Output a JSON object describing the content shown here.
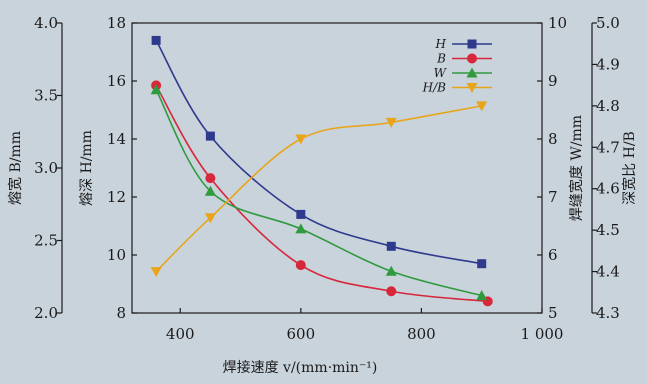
{
  "chart_data": {
    "type": "line",
    "xlabel": "焊接速度 v/(mm·min⁻¹)",
    "x_ticks": [
      400,
      600,
      800,
      1000
    ],
    "x_tick_labels": [
      "400",
      "600",
      "800",
      "1 000"
    ],
    "xlim": [
      320,
      1000
    ],
    "grid": false,
    "legend_position": "top-right",
    "axes": [
      {
        "id": "B",
        "label": "熔宽 B/mm",
        "side": "left-outer",
        "range": [
          2.0,
          4.0
        ],
        "ticks": [
          "2.0",
          "2.5",
          "3.0",
          "3.5",
          "4.0"
        ]
      },
      {
        "id": "H",
        "label": "熔深 H/mm",
        "side": "left-inner",
        "range": [
          8,
          18
        ],
        "ticks": [
          "8",
          "10",
          "12",
          "14",
          "16",
          "18"
        ]
      },
      {
        "id": "W",
        "label": "焊缝宽度 W/mm",
        "side": "right-inner",
        "range": [
          5,
          10
        ],
        "ticks": [
          "5",
          "6",
          "7",
          "8",
          "9",
          "10"
        ]
      },
      {
        "id": "H/B",
        "label": "深宽比 H/B",
        "side": "right-outer",
        "range": [
          4.3,
          5.0
        ],
        "ticks": [
          "4.3",
          "4.4",
          "4.5",
          "4.6",
          "4.7",
          "4.8",
          "4.9",
          "5.0"
        ]
      }
    ],
    "series": [
      {
        "name": "H",
        "axis": "H",
        "color": "#2e3a8c",
        "marker": "square",
        "x": [
          360,
          450,
          600,
          750,
          900
        ],
        "y": [
          17.4,
          14.1,
          11.4,
          10.3,
          9.7
        ]
      },
      {
        "name": "B",
        "axis": "B",
        "color": "#d8263a",
        "marker": "circle",
        "x": [
          360,
          450,
          600,
          750,
          910
        ],
        "y": [
          3.57,
          2.93,
          2.33,
          2.15,
          2.08
        ]
      },
      {
        "name": "W",
        "axis": "W",
        "color": "#2f9a3e",
        "marker": "triangle-up",
        "x": [
          360,
          450,
          600,
          750,
          900
        ],
        "y": [
          8.85,
          7.1,
          6.45,
          5.72,
          5.3
        ]
      },
      {
        "name": "H/B",
        "axis": "H/B",
        "color": "#e8a51c",
        "marker": "triangle-down",
        "x": [
          360,
          450,
          600,
          750,
          900
        ],
        "y": [
          4.4,
          4.53,
          4.72,
          4.76,
          4.8
        ]
      }
    ]
  }
}
